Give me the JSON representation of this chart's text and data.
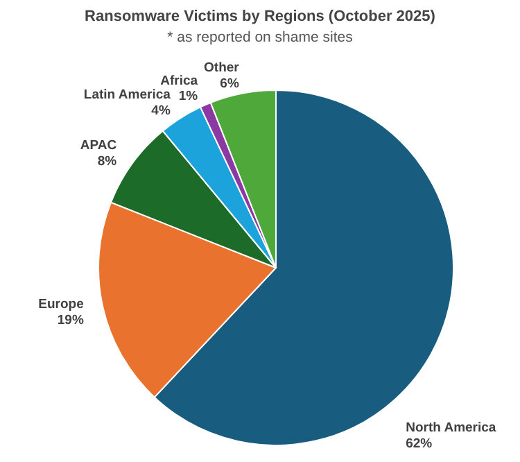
{
  "chart_data": {
    "type": "pie",
    "title": "Ransomware Victims by Regions (October 2025)",
    "subtitle": "* as reported on shame sites",
    "categories": [
      "North America",
      "Europe",
      "APAC",
      "Latin America",
      "Africa",
      "Other"
    ],
    "values": [
      62,
      19,
      8,
      4,
      1,
      6
    ],
    "value_labels": [
      "62%",
      "19%",
      "8%",
      "4%",
      "1%",
      "6%"
    ],
    "colors": [
      "#185d80",
      "#e8722e",
      "#1d6b28",
      "#1ca3db",
      "#8b3aa3",
      "#4fa83a"
    ],
    "legend": false
  }
}
